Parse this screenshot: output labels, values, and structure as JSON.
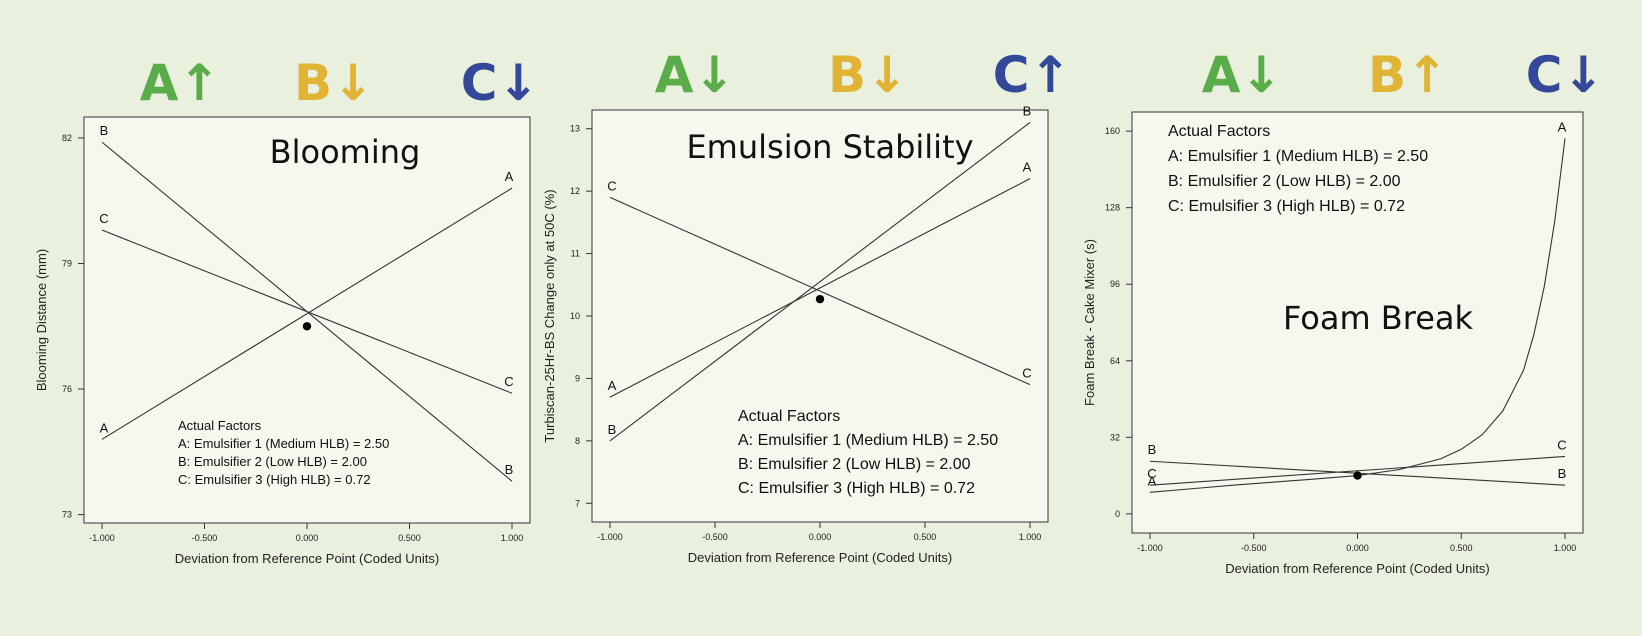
{
  "colors": {
    "A": "#5aac4a",
    "B": "#e2b435",
    "C": "#34489a",
    "background": "#e9f0dd",
    "plot_background": "#f6f8ef"
  },
  "headers": [
    [
      {
        "letter": "A",
        "arrow": "↑",
        "color": "#5aac4a"
      },
      {
        "letter": "B",
        "arrow": "↓",
        "color": "#e2b435"
      },
      {
        "letter": "C",
        "arrow": "↓",
        "color": "#34489a"
      }
    ],
    [
      {
        "letter": "A",
        "arrow": "↓",
        "color": "#5aac4a"
      },
      {
        "letter": "B",
        "arrow": "↓",
        "color": "#e2b435"
      },
      {
        "letter": "C",
        "arrow": "↑",
        "color": "#34489a"
      }
    ],
    [
      {
        "letter": "A",
        "arrow": "↓",
        "color": "#5aac4a"
      },
      {
        "letter": "B",
        "arrow": "↑",
        "color": "#e2b435"
      },
      {
        "letter": "C",
        "arrow": "↓",
        "color": "#34489a"
      }
    ]
  ],
  "chart_data": [
    {
      "type": "line",
      "title": "Blooming",
      "xlabel": "Deviation from Reference Point (Coded Units)",
      "ylabel": "Blooming Distance (mm)",
      "xlim": [
        -1.1,
        1.1
      ],
      "ylim": [
        72.8,
        82.5
      ],
      "xticks": [
        -1,
        -0.5,
        0,
        0.5,
        1
      ],
      "xtick_labels": [
        "-1.000",
        "-0.500",
        "0.000",
        "0.500",
        "1.000"
      ],
      "yticks": [
        73,
        76,
        79,
        82
      ],
      "ytick_labels": [
        "73",
        "76",
        "79",
        "82"
      ],
      "center": [
        0,
        77.5
      ],
      "series": [
        {
          "name": "A",
          "x": [
            -1,
            1
          ],
          "y": [
            74.8,
            80.8
          ]
        },
        {
          "name": "B",
          "x": [
            -1,
            1
          ],
          "y": [
            81.9,
            73.8
          ]
        },
        {
          "name": "C",
          "x": [
            -1,
            1
          ],
          "y": [
            79.8,
            75.9
          ]
        }
      ],
      "factors": {
        "heading": "Actual Factors",
        "lines": [
          "A: Emulsifier 1 (Medium HLB) = 2.50",
          "B: Emulsifier 2 (Low HLB) = 2.00",
          "C: Emulsifier 3 (High HLB) = 0.72"
        ]
      }
    },
    {
      "type": "line",
      "title": "Emulsion Stability",
      "xlabel": "Deviation from Reference Point (Coded Units)",
      "ylabel": "Turbiscan-25Hr-BS Change only at 50C (%)",
      "xlim": [
        -1.1,
        1.1
      ],
      "ylim": [
        6.7,
        13.3
      ],
      "xticks": [
        -1,
        -0.5,
        0,
        0.5,
        1
      ],
      "xtick_labels": [
        "-1.000",
        "-0.500",
        "0.000",
        "0.500",
        "1.000"
      ],
      "yticks": [
        7,
        8,
        9,
        10,
        11,
        12,
        13
      ],
      "ytick_labels": [
        "7",
        "8",
        "9",
        "10",
        "11",
        "12",
        "13"
      ],
      "center": [
        0,
        10.27
      ],
      "series": [
        {
          "name": "A",
          "x": [
            -1,
            1
          ],
          "y": [
            8.7,
            12.2
          ]
        },
        {
          "name": "B",
          "x": [
            -1,
            1
          ],
          "y": [
            8.0,
            13.1
          ]
        },
        {
          "name": "C",
          "x": [
            -1,
            1
          ],
          "y": [
            11.9,
            8.9
          ]
        }
      ],
      "factors": {
        "heading": "Actual Factors",
        "lines": [
          "A: Emulsifier 1 (Medium HLB) = 2.50",
          "B: Emulsifier 2 (Low HLB) = 2.00",
          "C: Emulsifier 3 (High HLB) = 0.72"
        ]
      }
    },
    {
      "type": "line",
      "title": "Foam Break",
      "xlabel": "Deviation from Reference Point (Coded Units)",
      "ylabel": "Foam Break - Cake Mixer (s)",
      "xlim": [
        -1.1,
        1.1
      ],
      "ylim": [
        -8,
        168
      ],
      "xticks": [
        -1,
        -0.5,
        0,
        0.5,
        1
      ],
      "xtick_labels": [
        "-1.000",
        "-0.500",
        "0.000",
        "0.500",
        "1.000"
      ],
      "yticks": [
        0,
        32,
        64,
        96,
        128,
        160
      ],
      "ytick_labels": [
        "0",
        "32",
        "64",
        "96",
        "128",
        "160"
      ],
      "center": [
        0,
        16
      ],
      "series": [
        {
          "name": "A",
          "x": [
            -1,
            -0.8,
            -0.6,
            -0.4,
            -0.2,
            0,
            0.2,
            0.4,
            0.5,
            0.6,
            0.7,
            0.8,
            0.85,
            0.9,
            0.95,
            1.0
          ],
          "y": [
            9,
            10.5,
            12,
            13.3,
            14.6,
            16,
            18.5,
            23,
            27,
            33,
            43,
            60,
            75,
            95,
            122,
            157
          ]
        },
        {
          "name": "B",
          "x": [
            -1,
            1
          ],
          "y": [
            22,
            12
          ]
        },
        {
          "name": "C",
          "x": [
            -1,
            1
          ],
          "y": [
            12,
            24
          ]
        }
      ],
      "factors": {
        "heading": "Actual Factors",
        "lines": [
          "A: Emulsifier 1 (Medium HLB) = 2.50",
          "B: Emulsifier 2 (Low HLB) = 2.00",
          "C: Emulsifier 3 (High HLB) = 0.72"
        ]
      }
    }
  ]
}
